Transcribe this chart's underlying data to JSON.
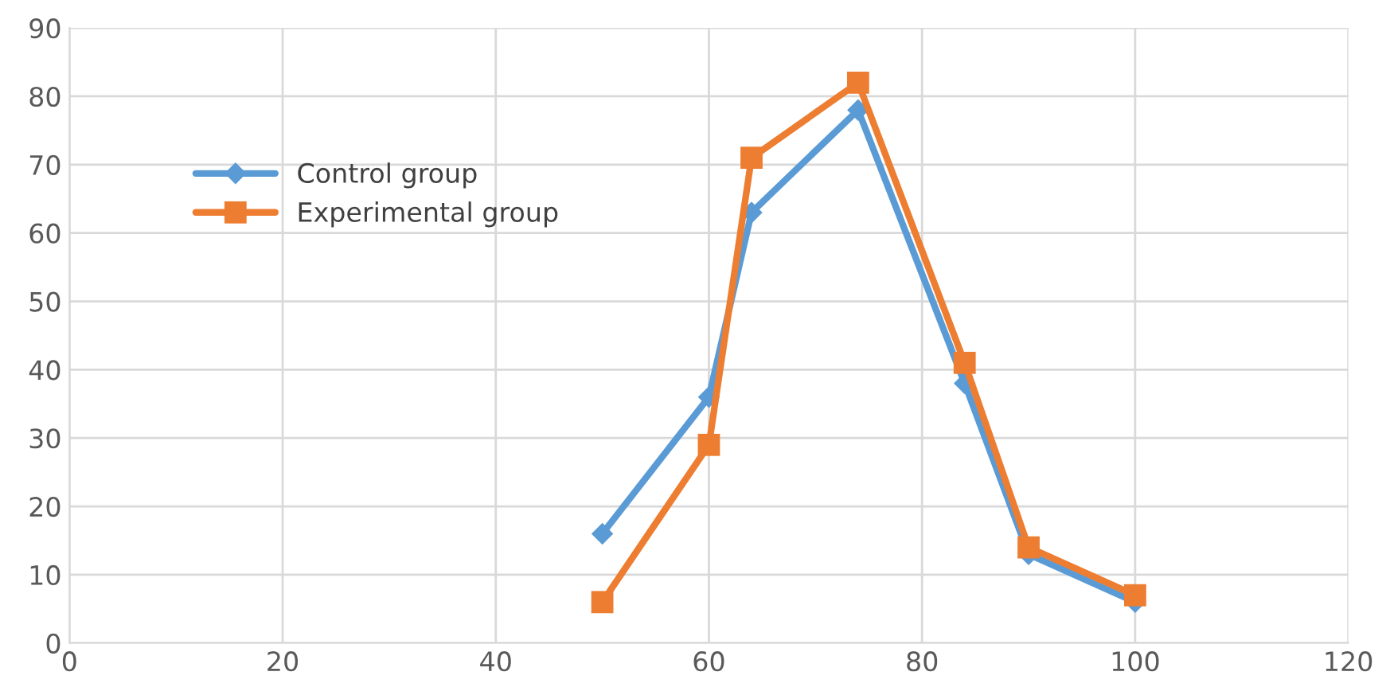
{
  "chart_data": {
    "type": "line",
    "xlim": [
      0,
      120
    ],
    "xticks": [
      0,
      20,
      40,
      60,
      80,
      100,
      120
    ],
    "ylim": [
      0,
      90
    ],
    "yticks": [
      0,
      10,
      20,
      30,
      40,
      50,
      60,
      70,
      80,
      90
    ],
    "grid": true,
    "legend": "top left",
    "series": [
      {
        "name": "Control group",
        "color": "#5b9bd5",
        "marker": "diamond",
        "x": [
          50,
          60,
          64,
          74,
          84,
          90,
          100
        ],
        "values": [
          16,
          36,
          63,
          78,
          38,
          13,
          6
        ]
      },
      {
        "name": "Experimental group",
        "color": "#ed7d31",
        "marker": "square",
        "x": [
          50,
          60,
          64,
          74,
          84,
          90,
          100
        ],
        "values": [
          6,
          29,
          71,
          82,
          41,
          14,
          7
        ]
      }
    ]
  }
}
